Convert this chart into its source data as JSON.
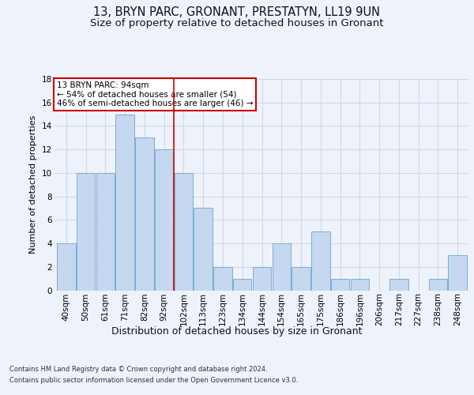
{
  "title1": "13, BRYN PARC, GRONANT, PRESTATYN, LL19 9UN",
  "title2": "Size of property relative to detached houses in Gronant",
  "xlabel": "Distribution of detached houses by size in Gronant",
  "ylabel": "Number of detached properties",
  "footer1": "Contains HM Land Registry data © Crown copyright and database right 2024.",
  "footer2": "Contains public sector information licensed under the Open Government Licence v3.0.",
  "annotation_line1": "13 BRYN PARC: 94sqm",
  "annotation_line2": "← 54% of detached houses are smaller (54)",
  "annotation_line3": "46% of semi-detached houses are larger (46) →",
  "bar_labels": [
    "40sqm",
    "50sqm",
    "61sqm",
    "71sqm",
    "82sqm",
    "92sqm",
    "102sqm",
    "113sqm",
    "123sqm",
    "134sqm",
    "144sqm",
    "154sqm",
    "165sqm",
    "175sqm",
    "186sqm",
    "196sqm",
    "206sqm",
    "217sqm",
    "227sqm",
    "238sqm",
    "248sqm"
  ],
  "bar_values": [
    4,
    10,
    10,
    15,
    13,
    12,
    10,
    7,
    2,
    1,
    2,
    4,
    2,
    5,
    1,
    1,
    0,
    1,
    0,
    1,
    3
  ],
  "bar_color": "#c5d8f0",
  "bar_edge_color": "#7aadd4",
  "vline_x_index": 5.5,
  "ylim": [
    0,
    18
  ],
  "yticks": [
    0,
    2,
    4,
    6,
    8,
    10,
    12,
    14,
    16,
    18
  ],
  "bg_color": "#eef2fa",
  "plot_bg_color": "#eef2fa",
  "annotation_box_color": "#ffffff",
  "annotation_box_edge": "#cc0000",
  "vline_color": "#cc0000",
  "grid_color": "#d0d8e8",
  "title1_fontsize": 10.5,
  "title2_fontsize": 9.5,
  "xlabel_fontsize": 9,
  "ylabel_fontsize": 8,
  "tick_fontsize": 7.5,
  "annotation_fontsize": 7.5,
  "footer_fontsize": 6
}
